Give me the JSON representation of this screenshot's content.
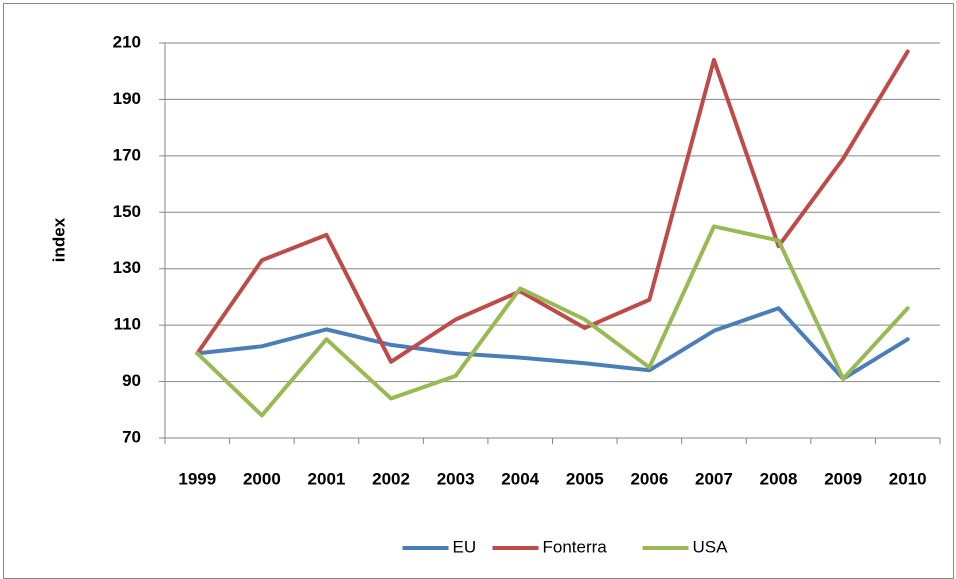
{
  "chart_data": {
    "type": "line",
    "y_label": "index",
    "categories": [
      "1999",
      "2000",
      "2001",
      "2002",
      "2003",
      "2004",
      "2005",
      "2006",
      "2007",
      "2008",
      "2009",
      "2010"
    ],
    "series": [
      {
        "name": "EU",
        "color": "#4a7ebb",
        "values": [
          100,
          102.5,
          108.5,
          103,
          100,
          98.5,
          96.5,
          94,
          108,
          116,
          91,
          105
        ]
      },
      {
        "name": "Fonterra",
        "color": "#be4b48",
        "values": [
          100,
          133,
          142,
          97,
          112,
          122,
          109,
          119,
          204,
          138,
          169,
          207
        ]
      },
      {
        "name": "USA",
        "color": "#98b954",
        "values": [
          100,
          78,
          105,
          84,
          92,
          123,
          112,
          95,
          145,
          140,
          91,
          116
        ]
      }
    ],
    "ylim": [
      70,
      210
    ],
    "yticks": [
      70,
      90,
      110,
      130,
      150,
      170,
      190,
      210
    ],
    "grid": true,
    "legend": "bottom"
  }
}
